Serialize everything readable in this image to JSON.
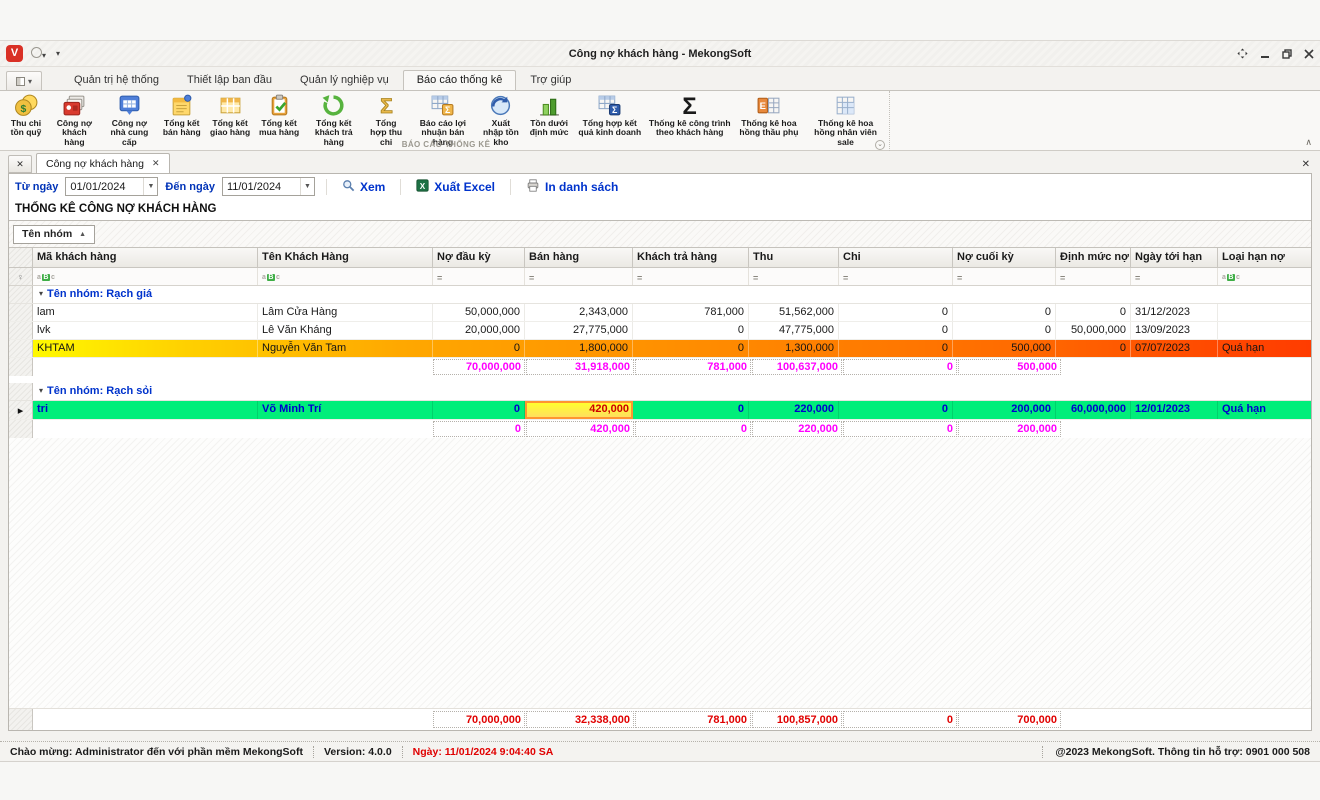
{
  "titlebar": {
    "title": "Công nợ khách hàng - MekongSoft",
    "logo_letter": "V"
  },
  "ribbon": {
    "tabs": [
      {
        "id": "quan-tri-he-thong",
        "label": "Quản trị hệ thống",
        "active": false
      },
      {
        "id": "thiet-lap-ban-dau",
        "label": "Thiết lập ban đầu",
        "active": false
      },
      {
        "id": "quan-ly-nghiep-vu",
        "label": "Quản lý nghiệp vụ",
        "active": false
      },
      {
        "id": "bao-cao-thong-ke",
        "label": "Báo cáo thống kê",
        "active": true
      },
      {
        "id": "tro-giup",
        "label": "Trợ giúp",
        "active": false
      }
    ],
    "items": [
      {
        "id": "thu-chi-ton-quy",
        "label": "Thu chi tồn quỹ",
        "icon": "coins-icon"
      },
      {
        "id": "cong-no-khach-hang",
        "label": "Công nợ khách hàng",
        "icon": "customer-debt-icon"
      },
      {
        "id": "cong-no-nha-cung-cap",
        "label": "Công nợ nhà cung cấp",
        "icon": "supplier-debt-icon"
      },
      {
        "id": "tong-ket-ban-hang",
        "label": "Tổng kết bán hàng",
        "icon": "sales-note-icon"
      },
      {
        "id": "tong-ket-giao-hang",
        "label": "Tổng kết giao hàng",
        "icon": "delivery-table-icon"
      },
      {
        "id": "tong-ket-mua-hang",
        "label": "Tổng kết mua hàng",
        "icon": "purchase-clipboard-icon"
      },
      {
        "id": "tong-ket-khach-tra-hang",
        "label": "Tổng kết khách trả hàng",
        "icon": "returns-arrow-icon"
      },
      {
        "id": "tong-hop-thu-chi",
        "label": "Tổng hợp thu chi",
        "icon": "sigma-gold-icon"
      },
      {
        "id": "bao-cao-loi-nhuan-ban-hang",
        "label": "Báo cáo lợi nhuận bán hàng",
        "icon": "profit-table-icon"
      },
      {
        "id": "xuat-nhap-ton-kho",
        "label": "Xuất nhập tồn kho",
        "icon": "inventory-cycle-icon"
      },
      {
        "id": "ton-duoi-dinh-muc",
        "label": "Tồn dưới định mức",
        "icon": "low-stock-bars-icon"
      },
      {
        "id": "tong-hop-ket-qua-kinh-doanh",
        "label": "Tổng hợp kết quả kinh doanh",
        "icon": "business-result-icon"
      },
      {
        "id": "thong-ke-cong-trinh-theo-khach-hang",
        "label": "Thống kê công trình theo khách hàng",
        "icon": "sigma-black-icon"
      },
      {
        "id": "thong-ke-hoa-hong-thau-phu",
        "label": "Thống kê hoa hồng thầu phụ",
        "icon": "commission-cells-icon"
      },
      {
        "id": "thong-ke-hoa-hong-nhan-vien-sale",
        "label": "Thống kê hoa hồng nhân viên sale",
        "icon": "sale-grid-icon"
      }
    ],
    "group_caption": "BÁO CÁO THỐNG KÊ"
  },
  "doc_tab": {
    "label": "Công nợ khách hàng"
  },
  "filter_bar": {
    "from_label": "Từ ngày",
    "from_value": "01/01/2024",
    "to_label": "Đến ngày",
    "to_value": "11/01/2024",
    "view_label": "Xem",
    "excel_label": "Xuất Excel",
    "print_label": "In danh sách"
  },
  "report": {
    "title": "THỐNG KÊ CÔNG NỢ KHÁCH HÀNG",
    "group_by_button": "Tên nhóm",
    "columns": [
      {
        "label": "Mã khách hàng",
        "filter": "abc"
      },
      {
        "label": "Tên Khách Hàng",
        "filter": "abc"
      },
      {
        "label": "Nợ đầu kỳ",
        "filter": "eq"
      },
      {
        "label": "Bán hàng",
        "filter": "eq"
      },
      {
        "label": "Khách trả hàng",
        "filter": "eq"
      },
      {
        "label": "Thu",
        "filter": "eq"
      },
      {
        "label": "Chi",
        "filter": "eq"
      },
      {
        "label": "Nợ cuối kỳ",
        "filter": "eq"
      },
      {
        "label": "Định mức nợ",
        "filter": "eq"
      },
      {
        "label": "Ngày tới hạn",
        "filter": "eq"
      },
      {
        "label": "Loại hạn nợ",
        "filter": "abc"
      }
    ],
    "groups": [
      {
        "name": "Tên nhóm: Rạch giá",
        "rows": [
          {
            "cells": [
              "lam",
              "Lâm Cửa Hàng",
              "50,000,000",
              "2,343,000",
              "781,000",
              "51,562,000",
              "0",
              "0",
              "0",
              "31/12/2023",
              ""
            ],
            "style": "normal"
          },
          {
            "cells": [
              "lvk",
              "Lê Văn Kháng",
              "20,000,000",
              "27,775,000",
              "0",
              "47,775,000",
              "0",
              "0",
              "50,000,000",
              "13/09/2023",
              ""
            ],
            "style": "normal"
          },
          {
            "cells": [
              "KHTAM",
              "Nguyễn Văn Tam",
              "0",
              "1,800,000",
              "0",
              "1,300,000",
              "0",
              "500,000",
              "0",
              "07/07/2023",
              "Quá hạn"
            ],
            "style": "overdue"
          }
        ],
        "summary": [
          "",
          "",
          "70,000,000",
          "31,918,000",
          "781,000",
          "100,637,000",
          "0",
          "500,000",
          "",
          "",
          ""
        ]
      },
      {
        "name": "Tên nhóm: Rạch sỏi",
        "rows": [
          {
            "cells": [
              "tri",
              "Võ Minh Trí",
              "0",
              "420,000",
              "0",
              "220,000",
              "0",
              "200,000",
              "60,000,000",
              "12/01/2023",
              "Quá hạn"
            ],
            "style": "selected",
            "indicator": "arrow",
            "focus_cell": 3
          }
        ],
        "summary": [
          "",
          "",
          "0",
          "420,000",
          "0",
          "220,000",
          "0",
          "200,000",
          "",
          "",
          ""
        ]
      }
    ],
    "grand_total": [
      "",
      "",
      "70,000,000",
      "32,338,000",
      "781,000",
      "100,857,000",
      "0",
      "700,000",
      "",
      "",
      ""
    ]
  },
  "status_bar": {
    "welcome": "Chào mừng: Administrator đến với phần mềm MekongSoft",
    "version": "Version: 4.0.0",
    "date": "Ngày: 11/01/2024 9:04:40 SA",
    "copyright": "@2023 MekongSoft. Thông tin hỗ trợ: 0901 000 508"
  },
  "colors": {
    "accent_blue": "#0033cc",
    "label_blue": "#0033b8",
    "summary_magenta": "#ff00ff",
    "total_red": "#e00000",
    "selected_row_green": "#00ee7a",
    "selected_row_text": "#0000cc",
    "overdue_start": "#ffff00",
    "overdue_end": "#ff3c00",
    "focus_cell_yellow": "#ffff2e",
    "focus_cell_text": "#cc0000",
    "logo_red": "#d93025"
  }
}
